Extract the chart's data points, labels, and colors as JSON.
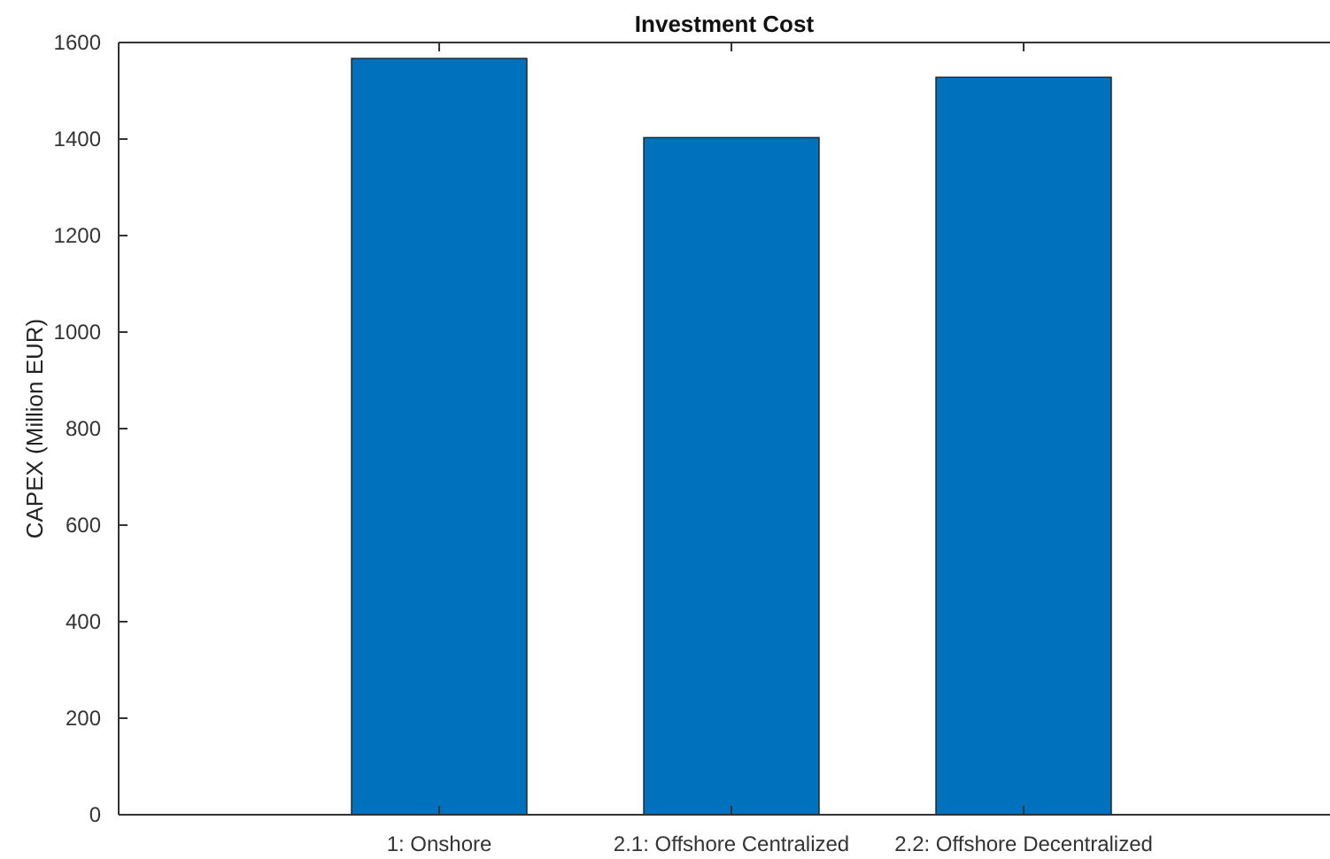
{
  "chart_data": {
    "type": "bar",
    "title": "Investment Cost",
    "ylabel": "CAPEX (Million EUR)",
    "categories": [
      "1: Onshore",
      "2.1: Offshore Centralized",
      "2.2: Offshore Decentralized"
    ],
    "values": [
      1567,
      1403,
      1528
    ],
    "color": "#0072bd",
    "ylim": [
      0,
      1600
    ],
    "yticks": [
      0,
      200,
      400,
      600,
      800,
      1000,
      1200,
      1400,
      1600
    ],
    "grid": false
  }
}
